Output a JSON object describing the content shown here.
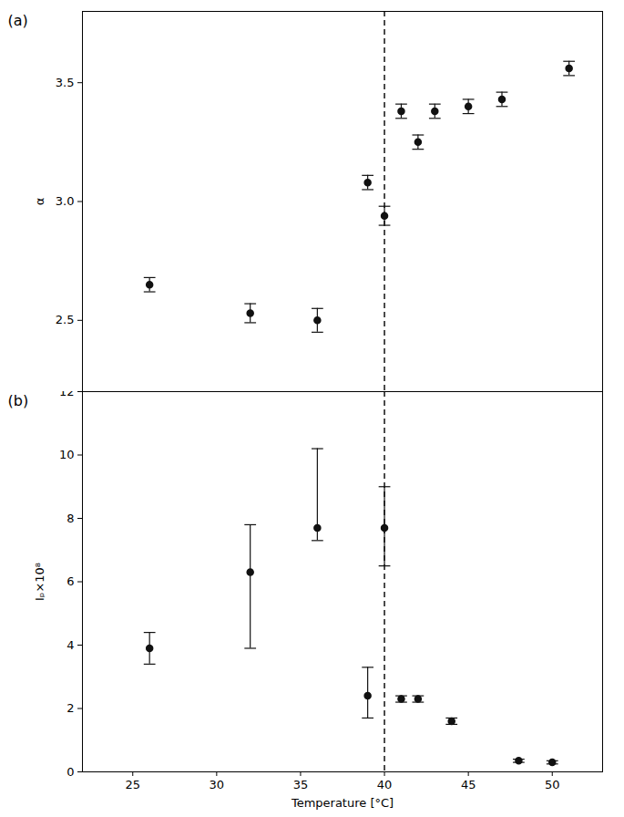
{
  "chart_data": [
    {
      "type": "scatter",
      "title": "(a)",
      "ylabel": "α",
      "x": [
        26,
        32,
        36,
        39,
        40,
        41,
        42,
        43,
        45,
        47,
        51
      ],
      "values": [
        2.65,
        2.53,
        2.5,
        3.08,
        2.94,
        3.38,
        3.25,
        3.38,
        3.4,
        3.43,
        3.56
      ],
      "yerr": [
        0.03,
        0.04,
        0.05,
        0.03,
        0.04,
        0.03,
        0.03,
        0.03,
        0.03,
        0.03,
        0.03
      ],
      "color": "#111111",
      "marker": "circle",
      "xlim": [
        22,
        53
      ],
      "xticks": [
        25,
        30,
        35,
        40,
        45,
        50
      ],
      "ylim": [
        2.2,
        3.8
      ],
      "yticks": [
        2.5,
        {
          "value": 3,
          "label": "3.0"
        },
        3.5
      ],
      "tick_labels": "y",
      "grid": false,
      "reference_lines": [
        {
          "x": 40,
          "line_style": "dashed",
          "color": "#111111"
        }
      ]
    },
    {
      "type": "scatter",
      "title": "(b)",
      "ylabel": "Iₚ×10⁸",
      "xlabel": "Temperature [°C]",
      "x": [
        26,
        32,
        36,
        39,
        40,
        41,
        42,
        44,
        48,
        50
      ],
      "values": [
        3.9,
        6.3,
        7.7,
        2.4,
        7.7,
        2.3,
        2.3,
        1.6,
        0.35,
        0.3
      ],
      "yerr_minus": [
        0.5,
        2.4,
        0.4,
        0.7,
        1.2,
        0.1,
        0.1,
        0.1,
        0.05,
        0.05
      ],
      "yerr_plus": [
        0.5,
        1.5,
        2.5,
        0.9,
        1.3,
        0.1,
        0.1,
        0.1,
        0.05,
        0.05
      ],
      "color": "#111111",
      "marker": "circle",
      "xlim": [
        22,
        53
      ],
      "xticks": [
        25,
        30,
        35,
        40,
        45,
        50
      ],
      "ylim": [
        0,
        12
      ],
      "yticks": [
        0,
        2,
        4,
        6,
        8,
        10,
        12
      ],
      "grid": false,
      "reference_lines": [
        {
          "x": 40,
          "line_style": "dashed",
          "color": "#111111"
        }
      ]
    }
  ]
}
